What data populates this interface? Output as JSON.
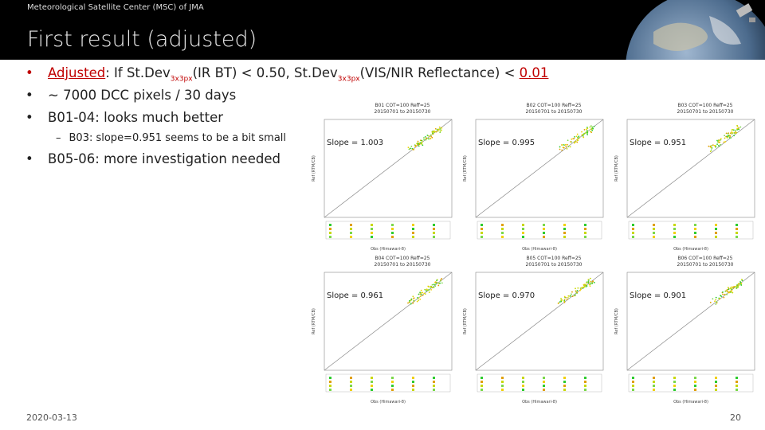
{
  "header": {
    "org": "Meteorological Satellite Center (MSC) of JMA",
    "title": "First result (adjusted)"
  },
  "bullets": [
    {
      "lead": "Adjusted",
      "t1": ": If St.Dev",
      "s1": "3x3px",
      "t2": "(IR BT) < 0.50, St.Dev",
      "s2": "3x3px",
      "t3": "(VIS/NIR Reflectance) < ",
      "tail": "0.01"
    },
    {
      "text": "~ 7000 DCC pixels / 30 days"
    },
    {
      "text": "B01-04: looks much better"
    },
    {
      "text": "B03: slope=0.951 seems to be a bit small"
    },
    {
      "text": "B05-06: more investigation needed"
    }
  ],
  "plots": [
    {
      "title": "B01 COT=100 Reff=25",
      "period": "20150701 to 20150730",
      "slope": "Slope = 1.003"
    },
    {
      "title": "B02 COT=100 Reff=25",
      "period": "20150701 to 20150730",
      "slope": "Slope = 0.995"
    },
    {
      "title": "B03 COT=100 Reff=25",
      "period": "20150701 to 20150730",
      "slope": "Slope = 0.951"
    },
    {
      "title": "B04 COT=100 Reff=25",
      "period": "20150701 to 20150730",
      "slope": "Slope = 0.961"
    },
    {
      "title": "B05 COT=100 Reff=25",
      "period": "20150701 to 20150730",
      "slope": "Slope = 0.970"
    },
    {
      "title": "B06 COT=100 Reff=25",
      "period": "20150701 to 20150730",
      "slope": "Slope = 0.901"
    }
  ],
  "axes": {
    "x_label": "Obs (Himawari-8)",
    "y_label": "Ref (RTM/CB)"
  },
  "footer": {
    "date": "2020-03-13",
    "page": "20"
  }
}
